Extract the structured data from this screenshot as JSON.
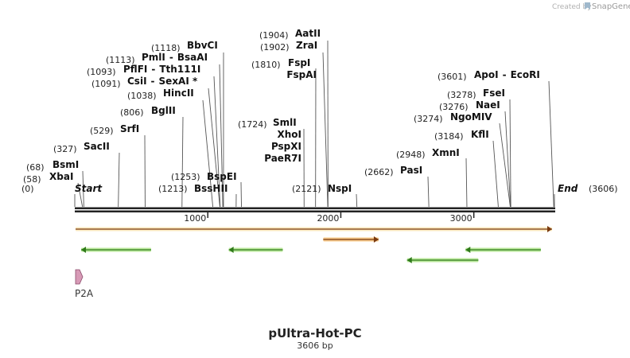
{
  "watermark": {
    "prefix": "Created by",
    "brand": "SnapGene"
  },
  "map": {
    "title": "pUltra-Hot-PC",
    "length_label": "3606 bp",
    "total_bp": 3606,
    "ticks": [
      {
        "bp": 1000,
        "label": "1000"
      },
      {
        "bp": 2000,
        "label": "2000"
      },
      {
        "bp": 3000,
        "label": "3000"
      }
    ],
    "sites": [
      {
        "id": "start",
        "bp": 0,
        "pos": "(0)",
        "name": "Start",
        "italic": true
      },
      {
        "id": "xbai",
        "bp": 58,
        "pos": "(58)",
        "name": "XbaI"
      },
      {
        "id": "bsmi",
        "bp": 68,
        "pos": "(68)",
        "name": "BsmI"
      },
      {
        "id": "sacii",
        "bp": 327,
        "pos": "(327)",
        "name": "SacII"
      },
      {
        "id": "srfi",
        "bp": 529,
        "pos": "(529)",
        "name": "SrfI"
      },
      {
        "id": "bglii",
        "bp": 806,
        "pos": "(806)",
        "name": "BglII"
      },
      {
        "id": "hincii",
        "bp": 1038,
        "pos": "(1038)",
        "name": "HincII"
      },
      {
        "id": "csii",
        "bp": 1091,
        "pos": "(1091)",
        "name": "CsiI",
        "extra": "SexAI *"
      },
      {
        "id": "pflfi",
        "bp": 1093,
        "pos": "(1093)",
        "name": "PflFI",
        "extra": "Tth111I"
      },
      {
        "id": "pmli",
        "bp": 1113,
        "pos": "(1113)",
        "name": "PmlI",
        "extra": "BsaAI"
      },
      {
        "id": "bbvci",
        "bp": 1118,
        "pos": "(1118)",
        "name": "BbvCI"
      },
      {
        "id": "bsshii",
        "bp": 1213,
        "pos": "(1213)",
        "name": "BssHII"
      },
      {
        "id": "bspei",
        "bp": 1253,
        "pos": "(1253)",
        "name": "BspEI"
      },
      {
        "id": "smli",
        "bp": 1724,
        "pos": "(1724)",
        "name": "SmlI",
        "stack": [
          "XhoI",
          "PspXI",
          "PaeR7I"
        ]
      },
      {
        "id": "fspi",
        "bp": 1810,
        "pos": "(1810)",
        "name": "FspI",
        "stack": [
          "FspAI"
        ]
      },
      {
        "id": "zrai",
        "bp": 1902,
        "pos": "(1902)",
        "name": "ZraI"
      },
      {
        "id": "aatii",
        "bp": 1904,
        "pos": "(1904)",
        "name": "AatII"
      },
      {
        "id": "nspi",
        "bp": 2121,
        "pos": "(2121)",
        "name": "NspI"
      },
      {
        "id": "pasi",
        "bp": 2662,
        "pos": "(2662)",
        "name": "PasI"
      },
      {
        "id": "xmni",
        "bp": 2948,
        "pos": "(2948)",
        "name": "XmnI"
      },
      {
        "id": "kfli",
        "bp": 3184,
        "pos": "(3184)",
        "name": "KflI"
      },
      {
        "id": "ngomiv",
        "bp": 3274,
        "pos": "(3274)",
        "name": "NgoMIV"
      },
      {
        "id": "naei",
        "bp": 3276,
        "pos": "(3276)",
        "name": "NaeI"
      },
      {
        "id": "fsei",
        "bp": 3278,
        "pos": "(3278)",
        "name": "FseI"
      },
      {
        "id": "apoi",
        "bp": 3601,
        "pos": "(3601)",
        "name": "ApoI",
        "extra": "EcoRI"
      },
      {
        "id": "end",
        "bp": 3606,
        "pos": "(3606)",
        "name": "End",
        "italic": true
      }
    ],
    "features": [
      {
        "id": "orange-long",
        "start": 0,
        "end": 3606,
        "direction": "forward",
        "color": "#f2a43a",
        "fill": "#fbeac0"
      },
      {
        "id": "orange-short",
        "start": 1850,
        "end": 2290,
        "direction": "forward",
        "color": "#e8862a",
        "fill": "#f7c98a"
      },
      {
        "id": "green-1",
        "start": 30,
        "end": 580,
        "direction": "reverse",
        "color": "#6fc23c",
        "fill": "#b9e79a"
      },
      {
        "id": "green-2",
        "start": 1140,
        "end": 1570,
        "direction": "reverse",
        "color": "#6fc23c",
        "fill": "#b9e79a"
      },
      {
        "id": "green-3",
        "start": 2480,
        "end": 3040,
        "direction": "reverse",
        "color": "#6fc23c",
        "fill": "#b9e79a"
      },
      {
        "id": "green-4",
        "start": 2920,
        "end": 3510,
        "direction": "reverse",
        "color": "#6fc23c",
        "fill": "#b9e79a"
      },
      {
        "id": "p2a",
        "start": 0,
        "end": 50,
        "direction": "forward",
        "color": "#8a4a6a",
        "fill": "#d79ab6",
        "label": "P2A"
      }
    ]
  }
}
